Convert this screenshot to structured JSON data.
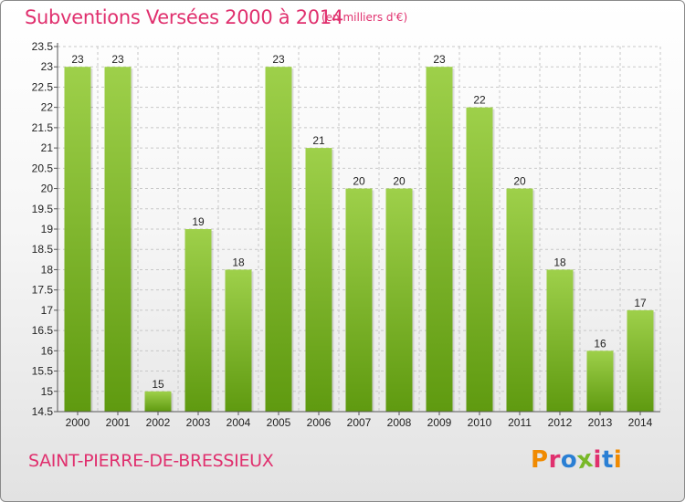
{
  "title": "Subventions Versées 2000 à 2014",
  "unit_note": "(en milliers d'€)",
  "place": "SAINT-PIERRE-DE-BRESSIEUX",
  "logo": {
    "letters": [
      "P",
      "r",
      "o",
      "x",
      "i",
      "t",
      "i"
    ],
    "colors": [
      "#f08a00",
      "#e0306e",
      "#2a7fd4",
      "#78b828",
      "#e0306e",
      "#2a7fd4",
      "#f08a00"
    ]
  },
  "colors": {
    "title": "#e0306e",
    "bar_top": "#9ed04a",
    "bar_bottom": "#5f9a10",
    "grid": "#c8c8c8",
    "axis": "#555555"
  },
  "chart_data": {
    "type": "bar",
    "title": "Subventions Versées 2000 à 2014",
    "subtitle": "(en milliers d'€)",
    "xlabel": "",
    "ylabel": "",
    "categories": [
      "2000",
      "2001",
      "2002",
      "2003",
      "2004",
      "2005",
      "2006",
      "2007",
      "2008",
      "2009",
      "2010",
      "2011",
      "2012",
      "2013",
      "2014"
    ],
    "values": [
      23,
      23,
      15,
      19,
      18,
      23,
      21,
      20,
      20,
      23,
      22,
      20,
      18,
      16,
      17
    ],
    "ylim": [
      14.5,
      23.5
    ],
    "yticks": [
      "14.5",
      "15",
      "15.5",
      "16",
      "16.5",
      "17",
      "17.5",
      "18",
      "18.5",
      "19",
      "19.5",
      "20",
      "20.5",
      "21",
      "21.5",
      "22",
      "22.5",
      "23",
      "23.5"
    ],
    "grid": true,
    "legend": "none"
  }
}
